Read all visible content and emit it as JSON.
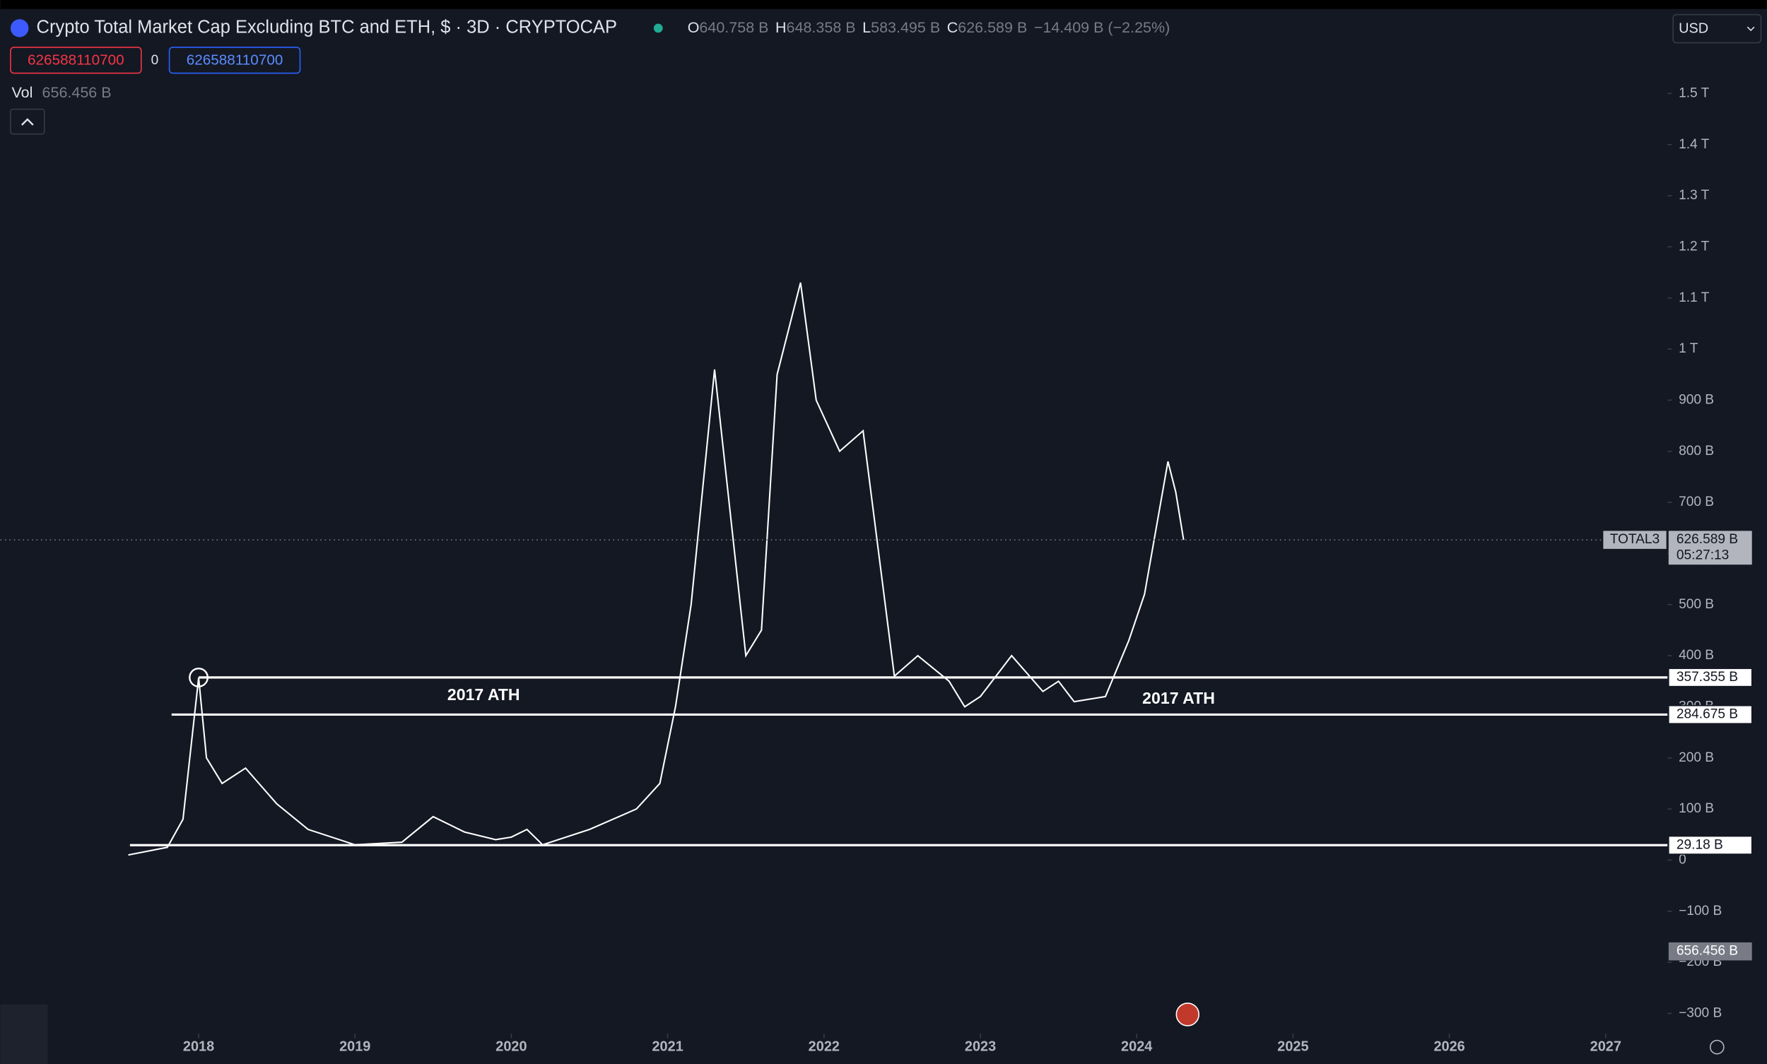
{
  "header": {
    "title": "Crypto Total Market Cap Excluding BTC and ETH, $ · 3D · CRYPTOCAP",
    "ohlc": [
      {
        "key": "O",
        "value": "640.758 B"
      },
      {
        "key": "H",
        "value": "648.358 B"
      },
      {
        "key": "L",
        "value": "583.495 B"
      },
      {
        "key": "C",
        "value": "626.589 B"
      }
    ],
    "change": "−14.409 B (−2.25%)",
    "order_sell": "626588110700",
    "spread": "0",
    "order_buy": "626588110700",
    "vol_label": "Vol",
    "vol_value": "656.456 B",
    "currency": "USD"
  },
  "chart_data": {
    "type": "line",
    "x": [
      2017.55,
      2017.8,
      2017.9,
      2018.0,
      2018.05,
      2018.15,
      2018.3,
      2018.5,
      2018.7,
      2018.9,
      2019.0,
      2019.3,
      2019.5,
      2019.7,
      2019.9,
      2020.0,
      2020.1,
      2020.2,
      2020.5,
      2020.8,
      2020.95,
      2021.05,
      2021.15,
      2021.3,
      2021.5,
      2021.6,
      2021.7,
      2021.85,
      2021.95,
      2022.1,
      2022.25,
      2022.35,
      2022.45,
      2022.6,
      2022.8,
      2022.9,
      2023.0,
      2023.2,
      2023.4,
      2023.5,
      2023.6,
      2023.8,
      2023.95,
      2024.05,
      2024.2,
      2024.25,
      2024.3
    ],
    "series": [
      {
        "name": "TOTAL3",
        "color": "#ffffff",
        "values": [
          10,
          25,
          80,
          357,
          200,
          150,
          180,
          110,
          60,
          40,
          30,
          35,
          85,
          55,
          40,
          45,
          60,
          30,
          60,
          100,
          150,
          300,
          500,
          960,
          400,
          450,
          950,
          1130,
          900,
          800,
          840,
          600,
          360,
          400,
          350,
          300,
          320,
          400,
          330,
          350,
          310,
          320,
          430,
          520,
          780,
          720,
          626.589
        ]
      }
    ],
    "xlim": [
      2016.732,
      2027.395
    ],
    "xticks": [
      2018,
      2019,
      2020,
      2021,
      2022,
      2023,
      2024,
      2025,
      2026,
      2027
    ],
    "ylim": [
      -399,
      1683
    ],
    "yticks": [
      {
        "value": -300,
        "label": "−300 B"
      },
      {
        "value": -200,
        "label": "−200 B"
      },
      {
        "value": -100,
        "label": "−100 B"
      },
      0,
      {
        "value": 100,
        "label": "100 B"
      },
      {
        "value": 200,
        "label": "200 B"
      },
      {
        "value": 300,
        "label": "300 B"
      },
      {
        "value": 400,
        "label": "400 B"
      },
      {
        "value": 500,
        "label": "500 B"
      },
      {
        "value": 600,
        "label": "600 B"
      },
      {
        "value": 700,
        "label": "700 B"
      },
      {
        "value": 800,
        "label": "800 B"
      },
      {
        "value": 900,
        "label": "900 B"
      },
      {
        "value": 1000,
        "label": "1 T"
      },
      {
        "value": 1100,
        "label": "1.1 T"
      },
      {
        "value": 1200,
        "label": "1.2 T"
      },
      {
        "value": 1300,
        "label": "1.3 T"
      },
      {
        "value": 1400,
        "label": "1.4 T"
      },
      {
        "value": 1500,
        "label": "1.5 T"
      }
    ],
    "levels": [
      {
        "value": 357.355,
        "label": "357.355 B"
      },
      {
        "value": 284.675,
        "label": "284.675 B"
      },
      {
        "value": 29.18,
        "label": "29.18 B"
      }
    ],
    "annotations": [
      "2017 ATH",
      "2017 ATH"
    ],
    "last_price": {
      "value": 626.589,
      "label": "626.589 B"
    },
    "countdown": "05:27:13",
    "volume_last": "656.456 B"
  }
}
